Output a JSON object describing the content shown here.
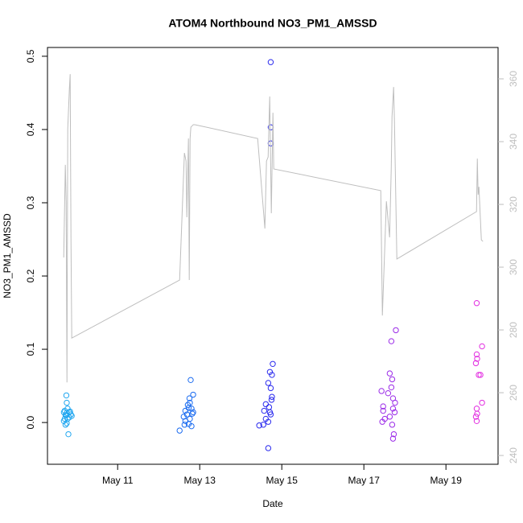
{
  "chart_data": {
    "type": "scatter",
    "title": "ATOM4 Northbound NO3_PM1_AMSSD",
    "x_label": "Date",
    "y_label": "NO3_PM1_AMSSD",
    "xlim": [
      9.29,
      20.27
    ],
    "xticks": [
      {
        "value": 11,
        "label": "May 11"
      },
      {
        "value": 13,
        "label": "May 13"
      },
      {
        "value": 15,
        "label": "May 15"
      },
      {
        "value": 17,
        "label": "May 17"
      },
      {
        "value": 19,
        "label": "May 19"
      }
    ],
    "ylim": [
      -0.057,
      0.512
    ],
    "yticks": [
      {
        "value": 0,
        "label": "0.0"
      },
      0.1,
      0.2,
      0.3,
      0.4,
      0.5
    ],
    "y2lim": [
      237.2,
      370
    ],
    "y2ticks": [
      240,
      260,
      280,
      300,
      320,
      340,
      360
    ],
    "y2_color": "#bebebe",
    "grid": false,
    "series": [
      {
        "color": "#22a7f0",
        "x": [
          9.75,
          9.76,
          9.78,
          9.71,
          9.69,
          9.75,
          9.71,
          9.69,
          9.73,
          9.8,
          9.84,
          9.86,
          9.82,
          9.88,
          9.78,
          9.76,
          9.82,
          9.73,
          9.76
        ],
        "values": [
          0.037,
          0.027,
          0.019,
          0.016,
          0.014,
          0.01,
          0.005,
          0.002,
          -0.003,
          -0.016,
          0.015,
          0.011,
          0.007,
          0.009,
          0.005,
          0.013,
          0.014,
          0.01,
          -0.001
        ]
      },
      {
        "color": "#1a6bf0",
        "x": [
          12.78,
          12.84,
          12.75,
          12.76,
          12.71,
          12.8,
          12.65,
          12.84,
          12.69,
          12.61,
          12.76,
          12.65,
          12.73,
          12.8,
          12.51,
          12.63,
          12.82,
          12.73
        ],
        "values": [
          0.058,
          0.038,
          0.033,
          0.027,
          0.024,
          0.019,
          0.016,
          0.014,
          0.011,
          0.008,
          0.005,
          0.002,
          -0.002,
          -0.005,
          -0.011,
          -0.003,
          0.012,
          0.02
        ]
      },
      {
        "color": "#2b2bee",
        "x": [
          14.73,
          14.73,
          14.73,
          14.78,
          14.71,
          14.76,
          14.67,
          14.73,
          14.76,
          14.61,
          14.69,
          14.57,
          14.73,
          14.61,
          14.67,
          14.55,
          14.45,
          14.67,
          14.75,
          14.71
        ],
        "values": [
          0.492,
          0.403,
          0.381,
          0.08,
          0.069,
          0.065,
          0.054,
          0.047,
          0.035,
          0.025,
          0.021,
          0.016,
          0.011,
          0.005,
          0.001,
          -0.003,
          -0.004,
          -0.035,
          0.031,
          0.014
        ]
      },
      {
        "color": "#9b2be8",
        "x": [
          17.78,
          17.67,
          17.63,
          17.69,
          17.67,
          17.43,
          17.59,
          17.71,
          17.76,
          17.47,
          17.71,
          17.47,
          17.75,
          17.63,
          17.45,
          17.69,
          17.73,
          17.71,
          17.51
        ],
        "values": [
          0.126,
          0.111,
          0.067,
          0.059,
          0.048,
          0.043,
          0.04,
          0.033,
          0.027,
          0.022,
          0.019,
          0.016,
          0.014,
          0.008,
          0.001,
          -0.003,
          -0.016,
          -0.022,
          0.005
        ]
      },
      {
        "color": "#e22be0",
        "x": [
          19.75,
          19.88,
          19.75,
          19.76,
          19.73,
          19.84,
          19.8,
          19.88,
          19.75,
          19.76,
          19.73,
          19.75
        ],
        "values": [
          0.163,
          0.104,
          0.093,
          0.087,
          0.081,
          0.065,
          0.065,
          0.027,
          0.019,
          0.012,
          0.008,
          0.002
        ]
      },
      {
        "type": "line",
        "axis": "y2",
        "color": "#bebebe",
        "x": [
          9.686,
          9.725,
          9.745,
          9.765,
          9.784,
          9.824,
          9.843,
          9.863,
          9.882,
          12.51,
          12.627,
          12.667,
          12.686,
          12.725,
          12.745,
          12.765,
          12.784,
          12.843,
          12.882,
          14.412,
          14.588,
          14.627,
          14.667,
          14.706,
          14.745,
          14.784,
          14.804,
          17.412,
          17.451,
          17.549,
          17.627,
          17.667,
          17.686,
          17.725,
          17.745,
          17.804,
          19.745,
          19.765,
          19.784,
          19.804,
          19.863,
          19.902
        ],
        "values": [
          303.1,
          332.6,
          321.0,
          263.3,
          344.1,
          356.9,
          361.5,
          308.2,
          277.4,
          295.9,
          336.4,
          333.8,
          315.9,
          341.0,
          295.9,
          341.0,
          344.6,
          345.4,
          345.4,
          341.0,
          312.3,
          333.8,
          335.1,
          354.4,
          317.2,
          349.2,
          331.3,
          324.4,
          284.6,
          321.0,
          309.5,
          331.3,
          348.0,
          357.4,
          346.7,
          302.6,
          317.7,
          334.6,
          323.1,
          325.6,
          308.7,
          308.2
        ]
      }
    ]
  }
}
